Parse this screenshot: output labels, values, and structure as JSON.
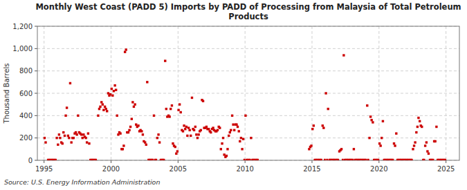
{
  "chart_data": {
    "type": "scatter",
    "title": "Monthly West Coast (PADD 5) Imports by PADD of Processing from Malaysia of Total Petroleum\nProducts",
    "y_label": "Thousand Barrels",
    "annotations": [
      "Source: U.S. Energy Information Administration"
    ],
    "color": "#CC0000",
    "marker": "square",
    "grid": true,
    "xlim": [
      1994.5,
      2026.0
    ],
    "xticks": [
      1995,
      2000,
      2005,
      2010,
      2015,
      2020,
      2025
    ],
    "ylim": [
      0,
      1200
    ],
    "yticks": [
      0,
      200,
      400,
      600,
      800,
      {
        "value": 1000,
        "label": "1,000"
      },
      {
        "value": 1200,
        "label": "1,200"
      }
    ],
    "series": [
      {
        "x": [
          1995.04,
          1995.12,
          1995.95,
          1996.04,
          1996.12,
          1996.2,
          1996.29,
          1996.37,
          1996.45,
          1996.54,
          1996.62,
          1996.7,
          1996.79,
          1996.87,
          1996.95,
          1997.04,
          1997.12,
          1997.2,
          1997.29,
          1997.37,
          1997.45,
          1997.54,
          1997.62,
          1997.7,
          1997.79,
          1997.87,
          1997.95,
          1998.04,
          1998.12,
          1998.2,
          1998.29,
          1998.37,
          1999.04,
          1999.12,
          1999.2,
          1999.29,
          1999.37,
          1999.45,
          1999.54,
          1999.62,
          1999.7,
          1999.79,
          1999.87,
          1999.95,
          2000.04,
          2000.12,
          2000.2,
          2000.29,
          2000.37,
          2000.45,
          2000.54,
          2000.62,
          2000.7,
          2000.79,
          2000.87,
          2000.95,
          2001.04,
          2001.12,
          2001.2,
          2001.29,
          2001.37,
          2001.45,
          2001.54,
          2001.62,
          2001.7,
          2001.79,
          2001.87,
          2001.95,
          2002.04,
          2002.12,
          2002.2,
          2002.29,
          2002.37,
          2002.45,
          2002.54,
          2002.62,
          2002.7,
          2003.2,
          2003.45,
          2003.54,
          2003.62,
          2004.04,
          2004.12,
          2004.2,
          2004.29,
          2004.37,
          2004.45,
          2004.54,
          2004.62,
          2004.7,
          2004.79,
          2004.87,
          2004.95,
          2005.04,
          2005.12,
          2005.2,
          2005.29,
          2005.37,
          2005.45,
          2005.54,
          2005.62,
          2005.7,
          2005.79,
          2005.87,
          2005.95,
          2006.04,
          2006.12,
          2006.2,
          2006.29,
          2006.37,
          2006.45,
          2006.54,
          2006.62,
          2006.7,
          2006.79,
          2006.87,
          2006.95,
          2007.04,
          2007.12,
          2007.2,
          2007.29,
          2007.37,
          2007.45,
          2007.54,
          2007.62,
          2007.7,
          2007.79,
          2007.87,
          2007.95,
          2008.04,
          2008.12,
          2008.2,
          2008.29,
          2008.37,
          2008.45,
          2008.54,
          2008.62,
          2008.7,
          2008.79,
          2008.87,
          2008.95,
          2009.04,
          2009.12,
          2009.2,
          2009.29,
          2009.37,
          2009.45,
          2009.54,
          2009.62,
          2009.7,
          2009.79,
          2009.87,
          2010.04,
          2010.45,
          2014.79,
          2014.87,
          2014.95,
          2015.04,
          2015.12,
          2015.79,
          2015.87,
          2016.04,
          2016.2,
          2017.04,
          2017.12,
          2017.2,
          2017.37,
          2018.12,
          2019.12,
          2019.29,
          2019.37,
          2019.45,
          2019.54,
          2020.04,
          2020.12,
          2020.2,
          2020.29,
          2021.12,
          2021.2,
          2021.29,
          2022.54,
          2022.62,
          2022.7,
          2022.79,
          2022.87,
          2022.95,
          2023.04,
          2023.12,
          2023.2,
          2023.45,
          2023.54,
          2023.62,
          2023.7,
          2024.12,
          2024.2,
          2024.29
        ],
        "values": [
          200,
          160,
          200,
          140,
          230,
          200,
          160,
          150,
          250,
          220,
          400,
          470,
          220,
          200,
          690,
          160,
          200,
          200,
          240,
          250,
          230,
          400,
          250,
          240,
          230,
          200,
          230,
          210,
          200,
          160,
          240,
          150,
          400,
          460,
          480,
          520,
          500,
          450,
          480,
          460,
          440,
          600,
          580,
          590,
          640,
          580,
          620,
          670,
          630,
          400,
          230,
          250,
          240,
          100,
          100,
          130,
          970,
          990,
          250,
          250,
          270,
          300,
          370,
          520,
          480,
          500,
          320,
          300,
          310,
          260,
          270,
          260,
          230,
          170,
          160,
          140,
          700,
          400,
          200,
          230,
          160,
          890,
          460,
          390,
          400,
          390,
          460,
          490,
          150,
          130,
          120,
          60,
          80,
          450,
          500,
          430,
          270,
          260,
          310,
          280,
          300,
          220,
          290,
          270,
          220,
          560,
          280,
          270,
          300,
          230,
          200,
          230,
          260,
          270,
          540,
          530,
          290,
          290,
          300,
          280,
          280,
          260,
          250,
          280,
          290,
          270,
          260,
          260,
          270,
          300,
          290,
          100,
          150,
          200,
          50,
          30,
          40,
          100,
          220,
          250,
          270,
          400,
          320,
          270,
          320,
          320,
          300,
          260,
          170,
          200,
          100,
          190,
          400,
          200,
          100,
          120,
          130,
          280,
          310,
          310,
          290,
          600,
          460,
          80,
          90,
          100,
          940,
          100,
          490,
          200,
          390,
          360,
          340,
          150,
          130,
          200,
          350,
          150,
          130,
          240,
          100,
          130,
          160,
          250,
          300,
          380,
          350,
          310,
          300,
          130,
          160,
          80,
          60,
          170,
          170,
          300
        ]
      },
      {
        "x": [
          1995.29,
          1995.37,
          1995.45,
          1995.54,
          1995.62,
          1995.7,
          1995.79,
          1995.87,
          1998.45,
          1998.54,
          1998.62,
          1998.7,
          1998.79,
          1998.87,
          2002.79,
          2002.87,
          2002.95,
          2003.04,
          2003.12,
          2003.29,
          2003.37,
          2003.7,
          2003.79,
          2003.87,
          2003.95,
          2009.95,
          2010.12,
          2010.2,
          2010.29,
          2010.37,
          2010.54,
          2010.62,
          2010.7,
          2010.79,
          2010.87,
          2010.95,
          2015.2,
          2015.29,
          2015.37,
          2015.45,
          2015.54,
          2015.62,
          2015.7,
          2015.95,
          2016.12,
          2016.29,
          2016.37,
          2016.45,
          2016.54,
          2016.62,
          2016.7,
          2016.79,
          2016.87,
          2016.95,
          2017.29,
          2017.45,
          2017.54,
          2017.62,
          2017.7,
          2017.79,
          2017.87,
          2017.95,
          2018.04,
          2018.2,
          2018.29,
          2018.37,
          2018.45,
          2018.54,
          2018.62,
          2018.7,
          2018.79,
          2018.87,
          2018.95,
          2019.04,
          2019.2,
          2019.62,
          2019.7,
          2019.79,
          2019.87,
          2019.95,
          2020.37,
          2020.45,
          2020.54,
          2020.62,
          2020.7,
          2020.79,
          2020.87,
          2020.95,
          2021.04,
          2021.37,
          2021.45,
          2021.54,
          2021.62,
          2021.7,
          2021.79,
          2021.87,
          2021.95,
          2022.04,
          2022.12,
          2022.2,
          2022.29,
          2022.37,
          2022.45,
          2023.29,
          2023.37,
          2023.79,
          2023.87,
          2023.95,
          2024.04,
          2024.37,
          2024.45,
          2024.54,
          2024.62,
          2024.7,
          2024.79,
          2024.87,
          2024.95
        ],
        "values": [
          5,
          5,
          5,
          5,
          5,
          5,
          5,
          5,
          5,
          5,
          5,
          5,
          5,
          5,
          5,
          5,
          5,
          5,
          5,
          5,
          5,
          5,
          5,
          5,
          5,
          5,
          5,
          5,
          5,
          5,
          5,
          5,
          5,
          5,
          5,
          5,
          5,
          5,
          5,
          5,
          5,
          5,
          5,
          5,
          5,
          5,
          5,
          5,
          5,
          5,
          5,
          5,
          5,
          5,
          5,
          5,
          5,
          5,
          5,
          5,
          5,
          5,
          5,
          5,
          5,
          5,
          5,
          5,
          5,
          5,
          5,
          5,
          5,
          5,
          5,
          5,
          5,
          5,
          5,
          5,
          5,
          5,
          5,
          5,
          5,
          5,
          5,
          5,
          5,
          5,
          5,
          5,
          5,
          5,
          5,
          5,
          5,
          5,
          5,
          5,
          5,
          5,
          5,
          5,
          5,
          5,
          5,
          5,
          5,
          5,
          5,
          5,
          5,
          5,
          5,
          5,
          5
        ]
      }
    ]
  }
}
